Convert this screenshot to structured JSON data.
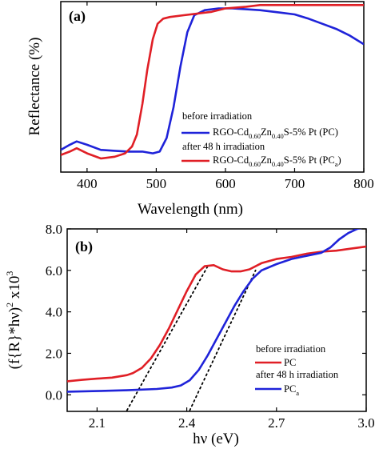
{
  "chart_data": [
    {
      "type": "line",
      "panel_label": "(a)",
      "xlabel": "Wavelength (nm)",
      "ylabel": "Reflectance (%)",
      "xlim": [
        362,
        800
      ],
      "ylim": [
        0,
        100
      ],
      "x_ticks": [
        "400",
        "500",
        "600",
        "700",
        "800"
      ],
      "y_ticks_shown": false,
      "legend_position": "lower-right",
      "legend": [
        {
          "heading": "before irradiation",
          "label": {
            "main": "RGO-Cd",
            "sub1": "0.60",
            "mid": "Zn",
            "sub2": "0.40",
            "tail": "S-5% Pt (PC)",
            "suffix_sub": "",
            "close": ""
          },
          "color": "#1f23d9"
        },
        {
          "heading": "after 48 h irradiation",
          "label": {
            "main": "RGO-Cd",
            "sub1": "0.60",
            "mid": "Zn",
            "sub2": "0.40",
            "tail": "S-5% Pt (PC",
            "suffix_sub": "a",
            "close": ")"
          },
          "color": "#e01f26"
        }
      ],
      "series": [
        {
          "color": "#1f23d9",
          "x": [
            362,
            375,
            385,
            400,
            420,
            440,
            460,
            480,
            495,
            505,
            515,
            525,
            535,
            545,
            555,
            570,
            590,
            610,
            630,
            650,
            680,
            700,
            720,
            740,
            760,
            780,
            800
          ],
          "y": [
            13,
            16,
            18,
            16,
            13,
            12.5,
            12,
            12,
            11,
            12,
            20,
            38,
            62,
            82,
            92,
            95,
            96,
            96,
            95.5,
            95,
            93.5,
            92.5,
            90,
            87,
            84,
            80,
            75
          ]
        },
        {
          "color": "#e01f26",
          "x": [
            362,
            375,
            385,
            400,
            420,
            440,
            455,
            465,
            472,
            480,
            487,
            495,
            502,
            510,
            520,
            540,
            560,
            580,
            600,
            630,
            650,
            680,
            700,
            750,
            800
          ],
          "y": [
            10,
            12,
            14,
            11,
            8,
            9,
            11,
            15,
            22,
            40,
            60,
            78,
            87,
            90,
            91,
            92,
            93,
            94,
            96,
            97,
            98,
            98,
            98,
            98,
            98
          ]
        }
      ]
    },
    {
      "type": "line",
      "panel_label": "(b)",
      "xlabel": "hν (eV)",
      "ylabel": {
        "main": "(f{R}*hν)",
        "sup": "2",
        "mid": " x10",
        "sup2": "3"
      },
      "xlim": [
        2.0,
        3.0
      ],
      "ylim": [
        -0.8,
        8.0
      ],
      "x_ticks": [
        "2.1",
        "2.4",
        "2.7",
        "3.0"
      ],
      "x_tick_values": [
        2.1,
        2.4,
        2.7,
        3.0
      ],
      "y_ticks": [
        "0.0",
        "2.0",
        "4.0",
        "6.0",
        "8.0"
      ],
      "y_tick_values": [
        0,
        2,
        4,
        6,
        8
      ],
      "legend_position": "lower-right",
      "legend": [
        {
          "heading": "before irradiation",
          "label": "PC",
          "sub": "",
          "color": "#e01f26"
        },
        {
          "heading": "after 48 h irradiation",
          "label": "PC",
          "sub": "a",
          "color": "#1f23d9"
        }
      ],
      "series": [
        {
          "color": "#e01f26",
          "x": [
            2.0,
            2.05,
            2.1,
            2.15,
            2.2,
            2.22,
            2.25,
            2.28,
            2.31,
            2.34,
            2.37,
            2.4,
            2.43,
            2.46,
            2.49,
            2.52,
            2.55,
            2.58,
            2.61,
            2.65,
            2.7,
            2.75,
            2.8,
            2.85,
            2.9,
            2.95,
            3.0
          ],
          "y": [
            0.65,
            0.72,
            0.78,
            0.83,
            0.95,
            1.05,
            1.3,
            1.75,
            2.4,
            3.2,
            4.1,
            5.0,
            5.8,
            6.2,
            6.25,
            6.05,
            5.95,
            5.95,
            6.05,
            6.35,
            6.55,
            6.65,
            6.8,
            6.9,
            6.95,
            7.05,
            7.15
          ]
        },
        {
          "color": "#1f23d9",
          "x": [
            2.0,
            2.1,
            2.2,
            2.3,
            2.35,
            2.38,
            2.41,
            2.44,
            2.47,
            2.5,
            2.53,
            2.56,
            2.59,
            2.62,
            2.65,
            2.7,
            2.75,
            2.8,
            2.85,
            2.88,
            2.91,
            2.94,
            2.97,
            3.0
          ],
          "y": [
            0.15,
            0.18,
            0.22,
            0.28,
            0.35,
            0.45,
            0.7,
            1.2,
            1.9,
            2.7,
            3.5,
            4.3,
            5.0,
            5.6,
            6.0,
            6.3,
            6.55,
            6.7,
            6.85,
            7.1,
            7.5,
            7.8,
            8.0,
            8.1
          ]
        }
      ],
      "fit_lines": [
        {
          "x": [
            2.2,
            2.47
          ],
          "y": [
            -0.75,
            6.2
          ],
          "color": "#000000",
          "style": "dotted"
        },
        {
          "x": [
            2.41,
            2.63
          ],
          "y": [
            -0.75,
            6.0
          ],
          "color": "#000000",
          "style": "dotted"
        }
      ]
    }
  ]
}
